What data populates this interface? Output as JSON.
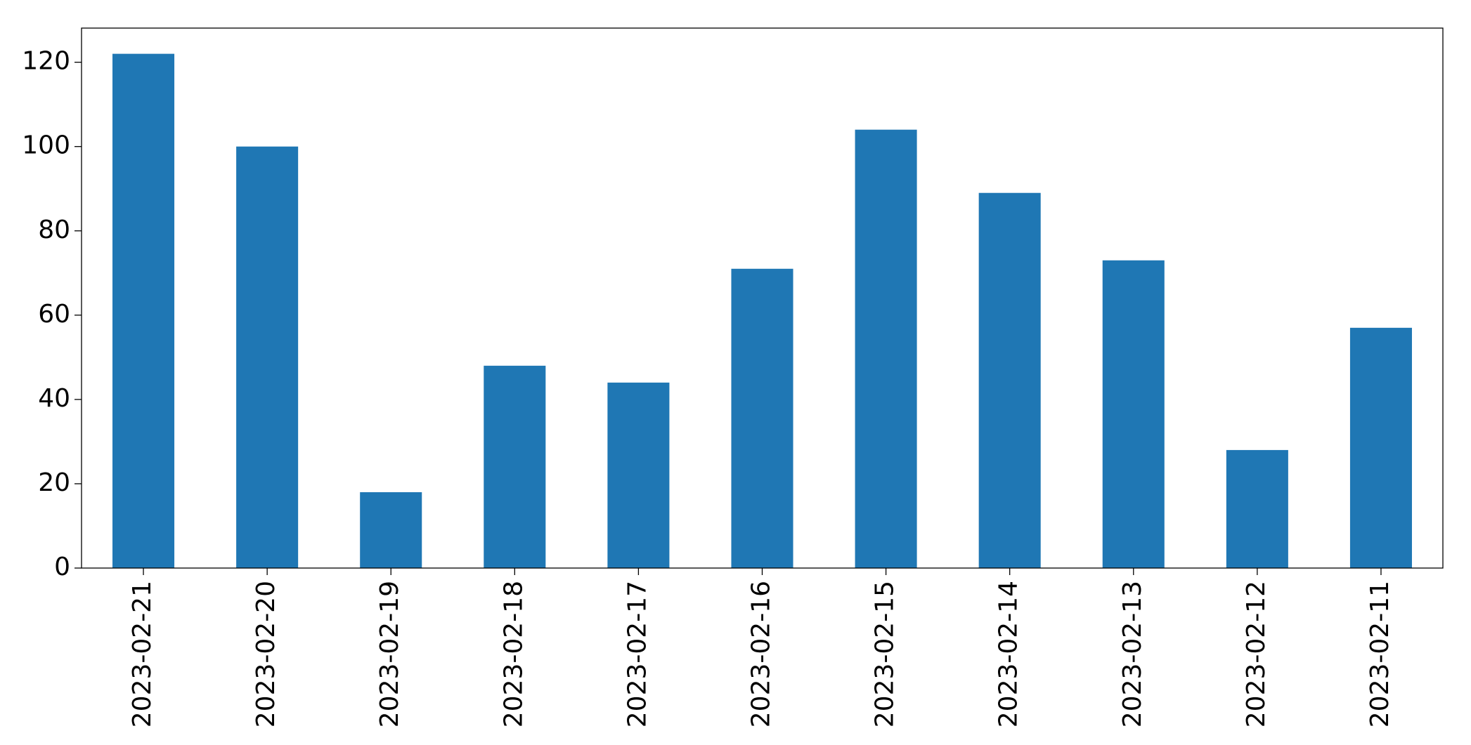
{
  "chart_data": {
    "type": "bar",
    "categories": [
      "2023-02-21",
      "2023-02-20",
      "2023-02-19",
      "2023-02-18",
      "2023-02-17",
      "2023-02-16",
      "2023-02-15",
      "2023-02-14",
      "2023-02-13",
      "2023-02-12",
      "2023-02-11"
    ],
    "values": [
      122,
      100,
      18,
      48,
      44,
      71,
      104,
      89,
      73,
      28,
      57
    ],
    "color": "#1f77b4",
    "ylim": [
      0,
      128.1
    ],
    "yticks": [
      0,
      20,
      40,
      60,
      80,
      100,
      120
    ],
    "grid": false
  }
}
